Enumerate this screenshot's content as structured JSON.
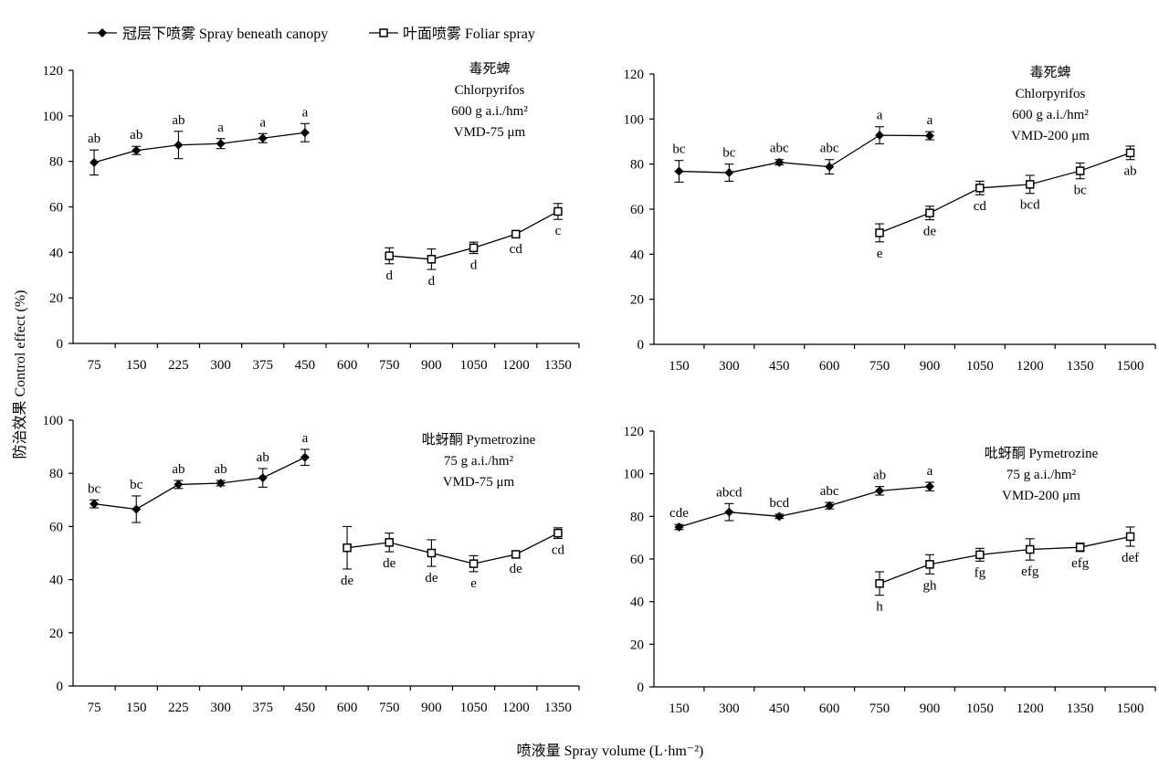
{
  "legend": {
    "items": [
      {
        "label": "冠层下喷雾 Spray beneath canopy",
        "marker": "diamond-filled"
      },
      {
        "label": "叶面喷雾 Foliar spray",
        "marker": "square-open"
      }
    ]
  },
  "y_axis_label": "防治效果 Control effect (%)",
  "x_axis_label": "喷液量 Spray volume (L·hm⁻²)",
  "chart_data": [
    {
      "type": "line",
      "annotation": [
        "毒死蜱",
        "Chlorpyrifos",
        "600 g a.i./hm²",
        "VMD-75 μm"
      ],
      "categories": [
        "75",
        "150",
        "225",
        "300",
        "375",
        "450",
        "600",
        "750",
        "900",
        "1050",
        "1200",
        "1350"
      ],
      "ylim": [
        0,
        120
      ],
      "yticks": [
        0,
        20,
        40,
        60,
        80,
        100,
        120
      ],
      "series": [
        {
          "name": "冠层下喷雾 Spray beneath canopy",
          "values": [
            79.5,
            84.8,
            87.2,
            87.8,
            90.2,
            92.6,
            null,
            null,
            null,
            null,
            null,
            null
          ],
          "errors": [
            5.5,
            1.8,
            6.0,
            2.2,
            2.0,
            4.0,
            null,
            null,
            null,
            null,
            null,
            null
          ],
          "letters": [
            "ab",
            "ab",
            "ab",
            "a",
            "a",
            "a",
            null,
            null,
            null,
            null,
            null,
            null
          ]
        },
        {
          "name": "叶面喷雾 Foliar spray",
          "values": [
            null,
            null,
            null,
            null,
            null,
            null,
            null,
            38.5,
            37.0,
            42.0,
            48.0,
            58.0
          ],
          "errors": [
            null,
            null,
            null,
            null,
            null,
            null,
            null,
            3.5,
            4.5,
            2.5,
            1.5,
            3.5
          ],
          "letters": [
            null,
            null,
            null,
            null,
            null,
            null,
            null,
            "d",
            "d",
            "d",
            "cd",
            "c"
          ]
        }
      ]
    },
    {
      "type": "line",
      "annotation": [
        "毒死蜱",
        "Chlorpyrifos",
        "600 g a.i./hm²",
        "VMD-200 μm"
      ],
      "categories": [
        "150",
        "300",
        "450",
        "600",
        "750",
        "900",
        "1050",
        "1200",
        "1350",
        "1500"
      ],
      "ylim": [
        0,
        120
      ],
      "yticks": [
        0,
        20,
        40,
        60,
        80,
        100,
        120
      ],
      "series": [
        {
          "name": "冠层下喷雾 Spray beneath canopy",
          "values": [
            76.8,
            76.2,
            80.8,
            78.8,
            92.8,
            92.6,
            null,
            null,
            null,
            null
          ],
          "errors": [
            4.8,
            3.8,
            1.2,
            3.2,
            3.8,
            1.8,
            null,
            null,
            null,
            null
          ],
          "letters": [
            "bc",
            "bc",
            "abc",
            "abc",
            "a",
            "a",
            null,
            null,
            null,
            null
          ]
        },
        {
          "name": "叶面喷雾 Foliar spray",
          "values": [
            null,
            null,
            null,
            null,
            49.5,
            58.3,
            69.4,
            71.0,
            77.0,
            85.0
          ],
          "errors": [
            null,
            null,
            null,
            null,
            4.0,
            3.0,
            3.0,
            4.0,
            3.5,
            3.0
          ],
          "letters": [
            null,
            null,
            null,
            null,
            "e",
            "de",
            "cd",
            "bcd",
            "bc",
            "ab"
          ]
        }
      ]
    },
    {
      "type": "line",
      "annotation": [
        "吡蚜酮 Pymetrozine",
        "75 g a.i./hm²",
        "VMD-75 μm"
      ],
      "categories": [
        "75",
        "150",
        "225",
        "300",
        "375",
        "450",
        "600",
        "750",
        "900",
        "1050",
        "1200",
        "1350"
      ],
      "ylim": [
        0,
        100
      ],
      "yticks": [
        0,
        20,
        40,
        60,
        80,
        100
      ],
      "series": [
        {
          "name": "冠层下喷雾 Spray beneath canopy",
          "values": [
            68.5,
            66.5,
            75.8,
            76.3,
            78.3,
            86.0,
            null,
            null,
            null,
            null,
            null,
            null
          ],
          "errors": [
            1.5,
            5.0,
            1.5,
            1.0,
            3.5,
            3.0,
            null,
            null,
            null,
            null,
            null,
            null
          ],
          "letters": [
            "bc",
            "bc",
            "ab",
            "ab",
            "ab",
            "a",
            null,
            null,
            null,
            null,
            null,
            null
          ]
        },
        {
          "name": "叶面喷雾 Foliar spray",
          "values": [
            null,
            null,
            null,
            null,
            null,
            null,
            52.0,
            54.0,
            50.0,
            46.0,
            49.5,
            57.5
          ],
          "errors": [
            null,
            null,
            null,
            null,
            null,
            null,
            8.0,
            3.5,
            5.0,
            3.0,
            1.0,
            2.0
          ],
          "letters": [
            null,
            null,
            null,
            null,
            null,
            null,
            "de",
            "de",
            "de",
            "e",
            "de",
            "cd"
          ]
        }
      ]
    },
    {
      "type": "line",
      "annotation": [
        "吡蚜酮 Pymetrozine",
        "75 g a.i./hm²",
        "VMD-200 μm"
      ],
      "categories": [
        "150",
        "300",
        "450",
        "600",
        "750",
        "900",
        "1050",
        "1200",
        "1350",
        "1500"
      ],
      "ylim": [
        0,
        120
      ],
      "yticks": [
        0,
        20,
        40,
        60,
        80,
        100,
        120
      ],
      "series": [
        {
          "name": "冠层下喷雾 Spray beneath canopy",
          "values": [
            75.0,
            82.0,
            80.0,
            85.0,
            92.0,
            94.0,
            null,
            null,
            null,
            null
          ],
          "errors": [
            1.2,
            4.0,
            1.0,
            1.5,
            2.0,
            2.0,
            null,
            null,
            null,
            null
          ],
          "letters": [
            "cde",
            "abcd",
            "bcd",
            "abc",
            "ab",
            "a",
            null,
            null,
            null,
            null
          ]
        },
        {
          "name": "叶面喷雾 Foliar spray",
          "values": [
            null,
            null,
            null,
            null,
            48.5,
            57.5,
            62.0,
            64.5,
            65.5,
            70.5
          ],
          "errors": [
            null,
            null,
            null,
            null,
            5.5,
            4.5,
            3.0,
            5.0,
            2.0,
            4.5
          ],
          "letters": [
            null,
            null,
            null,
            null,
            "h",
            "gh",
            "fg",
            "efg",
            "efg",
            "def"
          ]
        }
      ]
    }
  ]
}
